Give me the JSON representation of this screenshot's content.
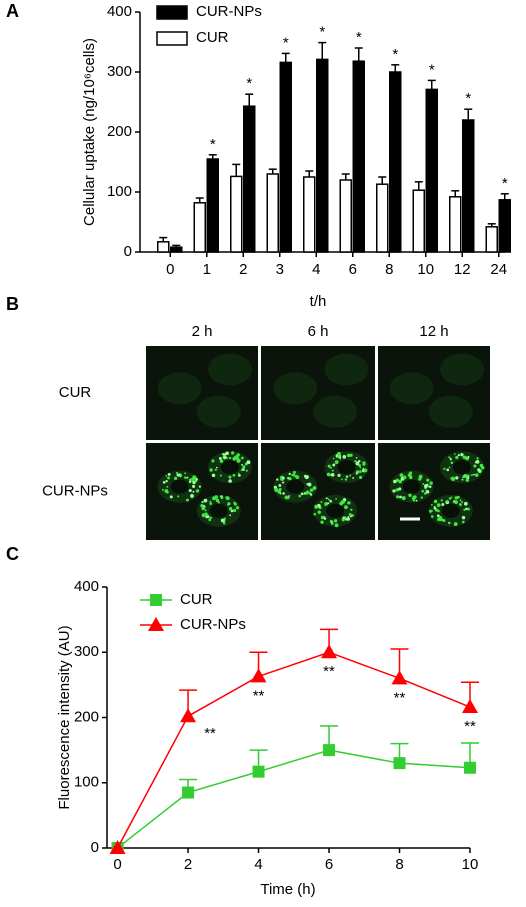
{
  "chart_data": [
    {
      "type": "bar",
      "panel": "A",
      "x_label": "t/h",
      "y_label": "Cellular uptake (ng/10⁶cells)",
      "categories": [
        "0",
        "1",
        "2",
        "3",
        "4",
        "6",
        "8",
        "10",
        "12",
        "24"
      ],
      "series": [
        {
          "name": "CUR-NPs",
          "color": "#000000",
          "values": [
            8,
            155,
            243,
            316,
            321,
            318,
            300,
            271,
            220,
            87
          ],
          "errors": [
            3,
            7,
            20,
            15,
            28,
            22,
            12,
            15,
            18,
            10
          ]
        },
        {
          "name": "CUR",
          "color": "#ffffff",
          "values": [
            17,
            82,
            126,
            130,
            125,
            120,
            113,
            103,
            92,
            42
          ],
          "errors": [
            7,
            8,
            20,
            8,
            10,
            10,
            12,
            14,
            10,
            5
          ]
        }
      ],
      "significance": [
        null,
        "*",
        "*",
        "*",
        "*",
        "*",
        "*",
        "*",
        "*",
        "*"
      ],
      "ylim": [
        0,
        400
      ],
      "yticks": [
        0,
        100,
        200,
        300,
        400
      ]
    },
    {
      "type": "line",
      "panel": "C",
      "x_label": "Time (h)",
      "y_label": "Fluorescence intensity (AU)",
      "x": [
        0,
        2,
        4,
        6,
        8,
        10
      ],
      "series": [
        {
          "name": "CUR",
          "color": "#33cc33",
          "marker": "square",
          "values": [
            0,
            85,
            117,
            150,
            130,
            123
          ],
          "errors": [
            0,
            20,
            33,
            37,
            30,
            38
          ]
        },
        {
          "name": "CUR-NPs",
          "color": "#ff0000",
          "marker": "triangle",
          "values": [
            0,
            202,
            263,
            300,
            260,
            216
          ],
          "errors": [
            0,
            40,
            37,
            35,
            45,
            38
          ]
        }
      ],
      "significance": [
        null,
        "**",
        "**",
        "**",
        "**",
        "**"
      ],
      "xlim": [
        -0.3,
        10
      ],
      "xticks": [
        0,
        2,
        4,
        6,
        8,
        10
      ],
      "ylim": [
        0,
        400
      ],
      "yticks": [
        0,
        100,
        200,
        300,
        400
      ]
    }
  ],
  "images": {
    "panel": "B",
    "columns": [
      "2 h",
      "6 h",
      "12 h"
    ],
    "rows": [
      "CUR",
      "CUR-NPs"
    ]
  }
}
